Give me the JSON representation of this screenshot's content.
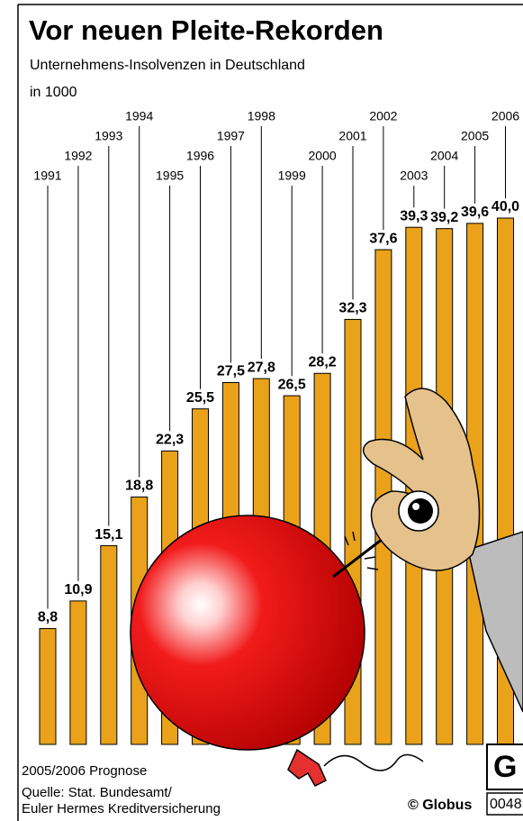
{
  "chart_data": {
    "type": "bar",
    "title": "Vor neuen Pleite-Rekorden",
    "subtitle": "Unternehmens-Insolvenzen in Deutschland",
    "unit": "in 1000",
    "categories": [
      "1991",
      "1992",
      "1993",
      "1994",
      "1995",
      "1996",
      "1997",
      "1998",
      "1999",
      "2000",
      "2001",
      "2002",
      "2003",
      "2004",
      "2005",
      "2006"
    ],
    "values": [
      8.8,
      10.9,
      15.1,
      18.8,
      22.3,
      25.5,
      27.5,
      27.8,
      26.5,
      28.2,
      32.3,
      37.6,
      39.3,
      39.2,
      39.6,
      40.0
    ],
    "value_labels": [
      "8,8",
      "10,9",
      "15,1",
      "18,8",
      "22,3",
      "25,5",
      "27,5",
      "27,8",
      "26,5",
      "28,2",
      "32,3",
      "37,6",
      "39,3",
      "39,2",
      "39,6",
      "40,0"
    ],
    "color": "#e9a21a",
    "note": "2005/2006 Prognose",
    "source": [
      "Quelle: Stat. Bundesamt/",
      "Euler Hermes Kreditversicherung"
    ],
    "credit": "© Globus",
    "code": "0048"
  }
}
